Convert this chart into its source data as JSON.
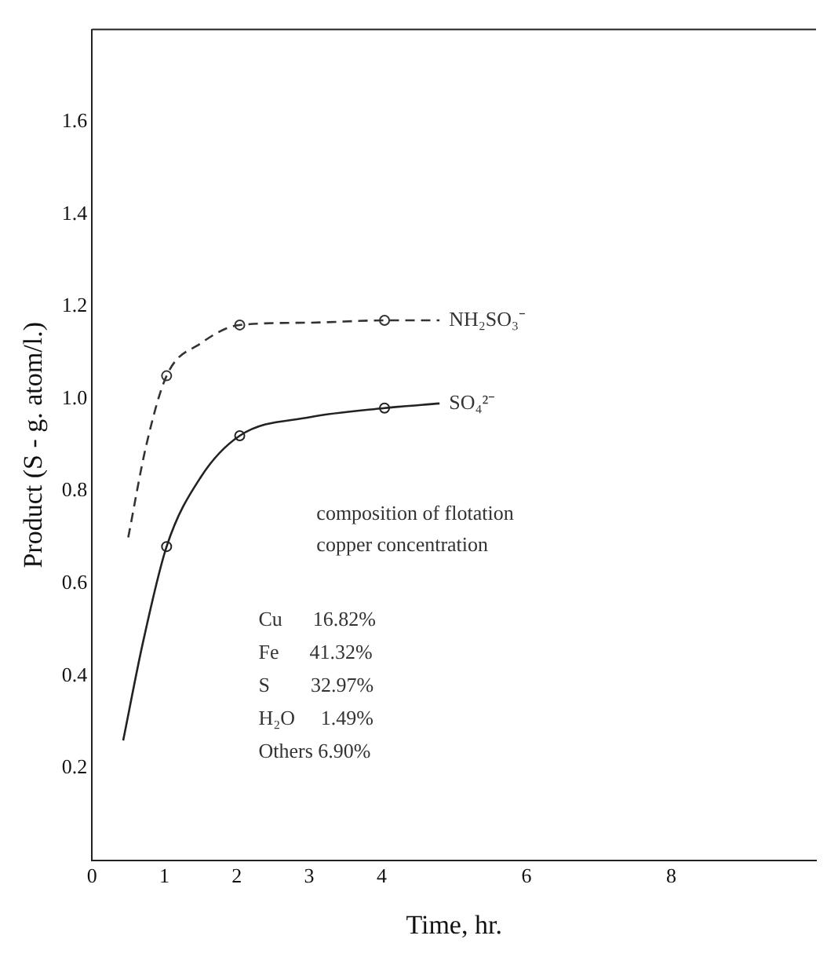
{
  "chart_data": {
    "type": "line",
    "xlabel": "Time, hr.",
    "ylabel": "Product (S - g. atom/l.)",
    "xlim": [
      0,
      10
    ],
    "ylim": [
      0,
      1.8
    ],
    "xticks": [
      0,
      1,
      2,
      3,
      4,
      6,
      8
    ],
    "yticks": [
      0.2,
      0.4,
      0.6,
      0.8,
      {
        "value": 1,
        "label": "1.0"
      },
      1.2,
      1.4,
      1.6
    ],
    "grid": false,
    "legend": false,
    "series": [
      {
        "name": "NH₂SO₃⁻",
        "color": "#333333",
        "line_style": "dashed",
        "marker": "none",
        "x": [
          0.5,
          0.75,
          1.03,
          1.5,
          2.04,
          3,
          4.04,
          4.8
        ],
        "values": [
          0.7,
          0.9,
          1.05,
          1.12,
          1.16,
          1.165,
          1.17,
          1.17
        ]
      },
      {
        "name": "SO₄²⁻",
        "color": "#222222",
        "line_style": "solid",
        "marker": "none",
        "x": [
          0.43,
          0.7,
          1.03,
          1.5,
          2.04,
          3,
          4.04,
          4.8
        ],
        "values": [
          0.26,
          0.47,
          0.68,
          0.83,
          0.92,
          0.96,
          0.98,
          0.99
        ]
      },
      {
        "type": "scatter",
        "color": "#333333",
        "marker": "circle",
        "x": [
          1.03,
          2.04,
          4.04
        ],
        "values": [
          1.05,
          1.16,
          1.17
        ]
      },
      {
        "type": "scatter",
        "color": "#222222",
        "marker": "circle",
        "x": [
          1.03,
          2.04,
          4.04
        ],
        "values": [
          0.68,
          0.92,
          0.98
        ]
      }
    ],
    "annotations": [
      "composition of flotation",
      "copper concentration",
      "Cu      16.82%",
      "Fe      41.32%",
      "S        32.97%",
      "H₂O     1.49%",
      "Others 6.90%"
    ]
  }
}
